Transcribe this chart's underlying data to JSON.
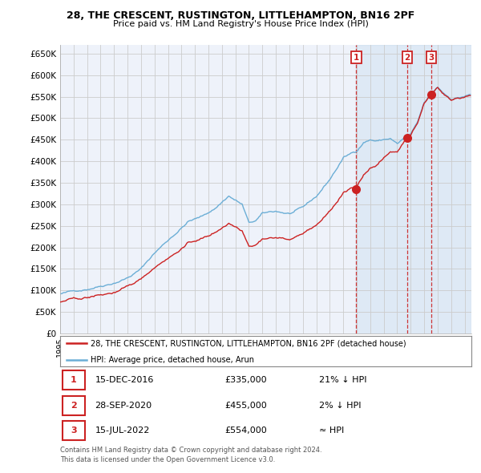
{
  "title": "28, THE CRESCENT, RUSTINGTON, LITTLEHAMPTON, BN16 2PF",
  "subtitle": "Price paid vs. HM Land Registry's House Price Index (HPI)",
  "ylabel_vals": [
    "£0",
    "£50K",
    "£100K",
    "£150K",
    "£200K",
    "£250K",
    "£300K",
    "£350K",
    "£400K",
    "£450K",
    "£500K",
    "£550K",
    "£600K",
    "£650K"
  ],
  "yticks": [
    0,
    50000,
    100000,
    150000,
    200000,
    250000,
    300000,
    350000,
    400000,
    450000,
    500000,
    550000,
    600000,
    650000
  ],
  "ylim": [
    0,
    670000
  ],
  "xlim_start": 1995.0,
  "xlim_end": 2025.5,
  "hpi_color": "#6baed6",
  "price_color": "#cc2222",
  "sale1_date": 2016.96,
  "sale1_price": 335000,
  "sale1_label": "1",
  "sale2_date": 2020.75,
  "sale2_price": 455000,
  "sale2_label": "2",
  "sale3_date": 2022.54,
  "sale3_price": 554000,
  "sale3_label": "3",
  "legend_line1": "28, THE CRESCENT, RUSTINGTON, LITTLEHAMPTON, BN16 2PF (detached house)",
  "legend_line2": "HPI: Average price, detached house, Arun",
  "table_rows": [
    {
      "num": "1",
      "date": "15-DEC-2016",
      "price": "£335,000",
      "hpi": "21% ↓ HPI"
    },
    {
      "num": "2",
      "date": "28-SEP-2020",
      "price": "£455,000",
      "hpi": "2% ↓ HPI"
    },
    {
      "num": "3",
      "date": "15-JUL-2022",
      "price": "£554,000",
      "hpi": "≈ HPI"
    }
  ],
  "footnote1": "Contains HM Land Registry data © Crown copyright and database right 2024.",
  "footnote2": "This data is licensed under the Open Government Licence v3.0.",
  "bg_color": "#ffffff",
  "grid_color": "#cccccc",
  "plot_bg": "#eef2fa"
}
